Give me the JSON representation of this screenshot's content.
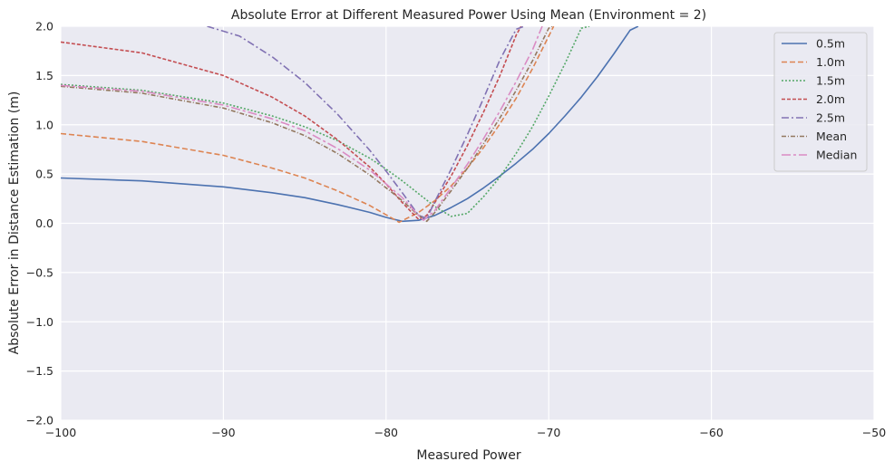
{
  "chart_data": {
    "type": "line",
    "title": "Absolute Error at Different Measured Power Using Mean (Environment = 2)",
    "xlabel": "Measured Power",
    "ylabel": "Absolute Error in Distance Estimation (m)",
    "xlim": [
      -100,
      -50
    ],
    "ylim": [
      -2.0,
      2.0
    ],
    "xticks": [
      -100,
      -90,
      -80,
      -70,
      -60,
      -50
    ],
    "xtick_labels": [
      "−100",
      "−90",
      "−80",
      "−70",
      "−60",
      "−50"
    ],
    "yticks": [
      -2.0,
      -1.5,
      -1.0,
      -0.5,
      0.0,
      0.5,
      1.0,
      1.5,
      2.0
    ],
    "ytick_labels": [
      "−2.0",
      "−1.5",
      "−1.0",
      "−0.5",
      "0.0",
      "0.5",
      "1.0",
      "1.5",
      "2.0"
    ],
    "grid": true,
    "legend_position": "top-right",
    "series": [
      {
        "name": "0.5m",
        "color": "#4c72b0",
        "dash": "solid",
        "x": [
          -100,
          -95,
          -90,
          -87,
          -85,
          -83,
          -81,
          -80,
          -79,
          -78,
          -77,
          -76,
          -75,
          -74,
          -73,
          -72,
          -71,
          -70,
          -69,
          -68,
          -67,
          -66,
          -65,
          -64.5
        ],
        "y": [
          0.46,
          0.43,
          0.37,
          0.31,
          0.26,
          0.19,
          0.11,
          0.06,
          0.02,
          0.03,
          0.08,
          0.16,
          0.25,
          0.36,
          0.48,
          0.61,
          0.75,
          0.91,
          1.09,
          1.28,
          1.49,
          1.72,
          1.96,
          2.0
        ]
      },
      {
        "name": "1.0m",
        "color": "#dd8452",
        "dash": "6,3",
        "x": [
          -100,
          -95,
          -90,
          -87,
          -85,
          -83,
          -81,
          -79.2,
          -78,
          -77,
          -76,
          -75,
          -74,
          -73,
          -72,
          -71,
          -70,
          -69.7
        ],
        "y": [
          0.91,
          0.83,
          0.69,
          0.56,
          0.46,
          0.33,
          0.18,
          0.01,
          0.11,
          0.23,
          0.38,
          0.56,
          0.77,
          1.01,
          1.27,
          1.57,
          1.9,
          2.0
        ]
      },
      {
        "name": "1.5m",
        "color": "#55a868",
        "dash": "2,2",
        "x": [
          -100,
          -95,
          -90,
          -87,
          -85,
          -83,
          -81,
          -80,
          -79,
          -78,
          -77,
          -76,
          -75,
          -74,
          -73,
          -72,
          -71,
          -70,
          -69,
          -68,
          -67.5
        ],
        "y": [
          1.41,
          1.35,
          1.22,
          1.09,
          0.98,
          0.84,
          0.66,
          0.55,
          0.43,
          0.3,
          0.17,
          0.07,
          0.1,
          0.27,
          0.47,
          0.71,
          0.98,
          1.29,
          1.62,
          1.98,
          2.0
        ]
      },
      {
        "name": "2.0m",
        "color": "#c44e52",
        "dash": "4,2",
        "x": [
          -100,
          -95,
          -90,
          -87,
          -85,
          -83,
          -81,
          -80,
          -79,
          -78,
          -77.5,
          -77,
          -76,
          -75,
          -74,
          -73,
          -72,
          -71.7
        ],
        "y": [
          1.84,
          1.73,
          1.5,
          1.28,
          1.09,
          0.85,
          0.57,
          0.4,
          0.21,
          0.04,
          0.08,
          0.21,
          0.48,
          0.79,
          1.13,
          1.5,
          1.91,
          2.0
        ]
      },
      {
        "name": "2.5m",
        "color": "#8172b3",
        "dash": "8,3,2,3",
        "x": [
          -91,
          -89,
          -87,
          -85,
          -83,
          -81,
          -80,
          -79,
          -78,
          -77.5,
          -77,
          -76,
          -75,
          -74,
          -73,
          -72,
          -71.5
        ],
        "y": [
          2.0,
          1.9,
          1.69,
          1.43,
          1.11,
          0.74,
          0.53,
          0.31,
          0.08,
          0.05,
          0.22,
          0.55,
          0.9,
          1.27,
          1.66,
          1.97,
          2.0
        ]
      },
      {
        "name": "Mean",
        "color": "#937860",
        "dash": "5,2,1,2",
        "x": [
          -100,
          -95,
          -90,
          -87,
          -85,
          -83,
          -81,
          -79,
          -78,
          -77.5,
          -77,
          -76,
          -75,
          -74,
          -73,
          -72,
          -71,
          -70,
          -69.8
        ],
        "y": [
          1.39,
          1.32,
          1.17,
          1.02,
          0.89,
          0.71,
          0.49,
          0.23,
          0.08,
          0.02,
          0.11,
          0.33,
          0.56,
          0.81,
          1.07,
          1.35,
          1.65,
          1.98,
          2.0
        ]
      },
      {
        "name": "Median",
        "color": "#da8bc3",
        "dash": "10,3,3,3",
        "x": [
          -100,
          -95,
          -90,
          -87,
          -85,
          -83,
          -81,
          -79,
          -78,
          -77.7,
          -77,
          -76,
          -75,
          -74,
          -73,
          -72,
          -71,
          -70.4
        ],
        "y": [
          1.4,
          1.34,
          1.2,
          1.06,
          0.94,
          0.76,
          0.54,
          0.26,
          0.08,
          0.03,
          0.13,
          0.36,
          0.6,
          0.86,
          1.14,
          1.44,
          1.76,
          2.0
        ]
      }
    ]
  }
}
